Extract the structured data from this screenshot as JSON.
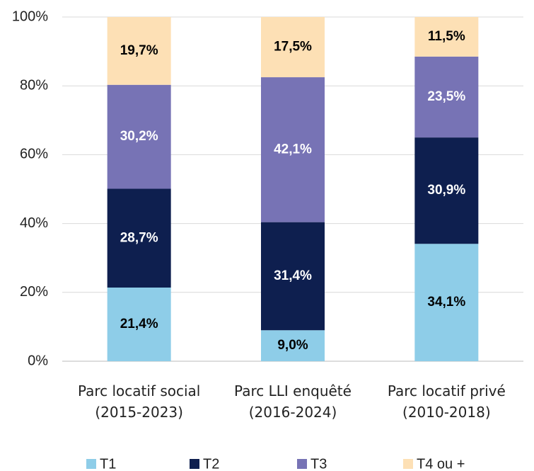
{
  "chart_data": {
    "type": "stacked_bar",
    "categories": [
      "Parc locatif social\n(2015-2023)",
      "Parc LLI enquêté\n(2016-2024)",
      "Parc locatif privé\n(2010-2018)"
    ],
    "series": [
      {
        "name": "T1",
        "color": "#8ecde8",
        "values": [
          21.4,
          9.0,
          34.1
        ],
        "value_labels": [
          "21,4%",
          "9,0%",
          "34,1%"
        ]
      },
      {
        "name": "T2",
        "color": "#0e1f4f",
        "values": [
          28.7,
          31.4,
          30.9
        ],
        "value_labels": [
          "28,7%",
          "31,4%",
          "30,9%"
        ]
      },
      {
        "name": "T3",
        "color": "#7773b5",
        "values": [
          30.2,
          42.1,
          23.5
        ],
        "value_labels": [
          "30,2%",
          "42,1%",
          "23,5%"
        ]
      },
      {
        "name": "T4 ou +",
        "color": "#fde0b5",
        "values": [
          19.7,
          17.5,
          11.5
        ],
        "value_labels": [
          "19,7%",
          "17,5%",
          "11,5%"
        ]
      }
    ],
    "ylim": [
      0,
      100
    ],
    "yticks": [
      {
        "value": 0,
        "label": "0%"
      },
      {
        "value": 20,
        "label": "20%"
      },
      {
        "value": 40,
        "label": "40%"
      },
      {
        "value": 60,
        "label": "60%"
      },
      {
        "value": 80,
        "label": "80%"
      },
      {
        "value": 100,
        "label": "100%"
      }
    ],
    "grid": true,
    "legend": "bottom"
  }
}
